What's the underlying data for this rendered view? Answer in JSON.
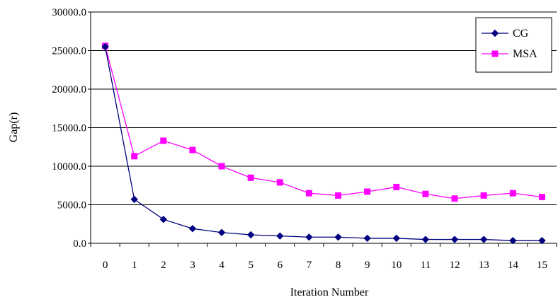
{
  "chart_data": {
    "type": "line",
    "title": "",
    "xlabel": "Iteration Number",
    "ylabel": "Gap(r)",
    "x": [
      0,
      1,
      2,
      3,
      4,
      5,
      6,
      7,
      8,
      9,
      10,
      11,
      12,
      13,
      14,
      15
    ],
    "x_tick_labels": [
      "0",
      "1",
      "2",
      "3",
      "4",
      "5",
      "6",
      "7",
      "8",
      "9",
      "10",
      "11",
      "12",
      "13",
      "14",
      "15"
    ],
    "y_tick_labels": [
      "0.0",
      "5000.0",
      "10000.0",
      "15000.0",
      "20000.0",
      "25000.0",
      "30000.0"
    ],
    "ylim": [
      0,
      30000
    ],
    "y_ticks": [
      0,
      5000,
      10000,
      15000,
      20000,
      25000,
      30000
    ],
    "grid": "horizontal",
    "legend_position": "top-right",
    "series": [
      {
        "name": "CG",
        "color": "#000080",
        "marker": "diamond",
        "values": [
          25500,
          5700,
          3100,
          1900,
          1400,
          1100,
          950,
          800,
          800,
          650,
          650,
          500,
          500,
          500,
          350,
          350
        ]
      },
      {
        "name": "MSA",
        "color": "#FF00FF",
        "marker": "square",
        "values": [
          25600,
          11300,
          13300,
          12100,
          10000,
          8500,
          7900,
          6500,
          6200,
          6700,
          7300,
          6400,
          5800,
          6200,
          6500,
          6000
        ]
      }
    ]
  }
}
